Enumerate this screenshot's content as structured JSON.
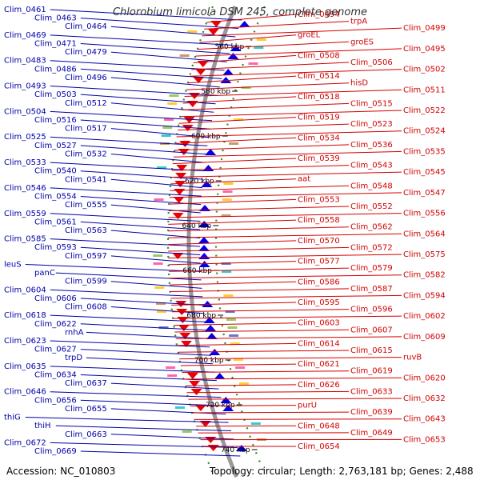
{
  "title": "Chlorobium limicola DSM 245, complete genome",
  "footer": {
    "accession": "Accession: NC_010803",
    "summary": "Topology: circular; Length: 2,763,181 bp; Genes: 2,488"
  },
  "colors": {
    "left_label": "#0000aa",
    "right_label": "#d40000",
    "forward_arrow": "#0000ee",
    "reverse_arrow": "#ee0000",
    "backbone": "#999999",
    "tick": "#2e8b2e"
  },
  "scale_ticks": [
    "560 kbp",
    "580 kbp",
    "600 kbp",
    "620 kbp",
    "640 kbp",
    "660 kbp",
    "680 kbp",
    "700 kbp",
    "720 kbp",
    "740 kbp"
  ],
  "left_labels": [
    "Clim_0461",
    "Clim_0463",
    "Clim_0464",
    "Clim_0469",
    "Clim_0471",
    "Clim_0479",
    "Clim_0483",
    "Clim_0486",
    "Clim_0496",
    "Clim_0493",
    "Clim_0503",
    "Clim_0512",
    "Clim_0504",
    "Clim_0516",
    "Clim_0517",
    "Clim_0525",
    "Clim_0527",
    "Clim_0532",
    "Clim_0533",
    "Clim_0540",
    "Clim_0541",
    "Clim_0546",
    "Clim_0554",
    "Clim_0555",
    "Clim_0559",
    "Clim_0561",
    "Clim_0563",
    "Clim_0585",
    "Clim_0593",
    "Clim_0597",
    "leuS",
    "panC",
    "Clim_0599",
    "Clim_0604",
    "Clim_0606",
    "Clim_0608",
    "Clim_0618",
    "Clim_0622",
    "rnhA",
    "Clim_0623",
    "Clim_0627",
    "trpD",
    "Clim_0635",
    "Clim_0634",
    "Clim_0637",
    "Clim_0646",
    "Clim_0656",
    "Clim_0655",
    "thiG",
    "thiH",
    "Clim_0663",
    "Clim_0672",
    "Clim_0669"
  ],
  "right_labels": [
    "Clim_0494",
    "trpA",
    "Clim_0499",
    "groEL",
    "groES",
    "Clim_0495",
    "Clim_0508",
    "Clim_0506",
    "Clim_0502",
    "Clim_0514",
    "hisD",
    "Clim_0511",
    "Clim_0518",
    "Clim_0515",
    "Clim_0522",
    "Clim_0519",
    "Clim_0523",
    "Clim_0524",
    "Clim_0534",
    "Clim_0536",
    "Clim_0535",
    "Clim_0539",
    "Clim_0543",
    "Clim_0545",
    "aat",
    "Clim_0548",
    "Clim_0547",
    "Clim_0553",
    "Clim_0552",
    "Clim_0556",
    "Clim_0558",
    "Clim_0562",
    "Clim_0564",
    "Clim_0570",
    "Clim_0572",
    "Clim_0575",
    "Clim_0577",
    "Clim_0579",
    "Clim_0582",
    "Clim_0586",
    "Clim_0587",
    "Clim_0594",
    "Clim_0595",
    "Clim_0596",
    "Clim_0602",
    "Clim_0603",
    "Clim_0607",
    "Clim_0609",
    "Clim_0614",
    "Clim_0615",
    "ruvB",
    "Clim_0621",
    "Clim_0619",
    "Clim_0620",
    "Clim_0626",
    "Clim_0633",
    "Clim_0632",
    "purU",
    "Clim_0639",
    "Clim_0643",
    "Clim_0648",
    "Clim_0649",
    "Clim_0653",
    "Clim_0654"
  ]
}
